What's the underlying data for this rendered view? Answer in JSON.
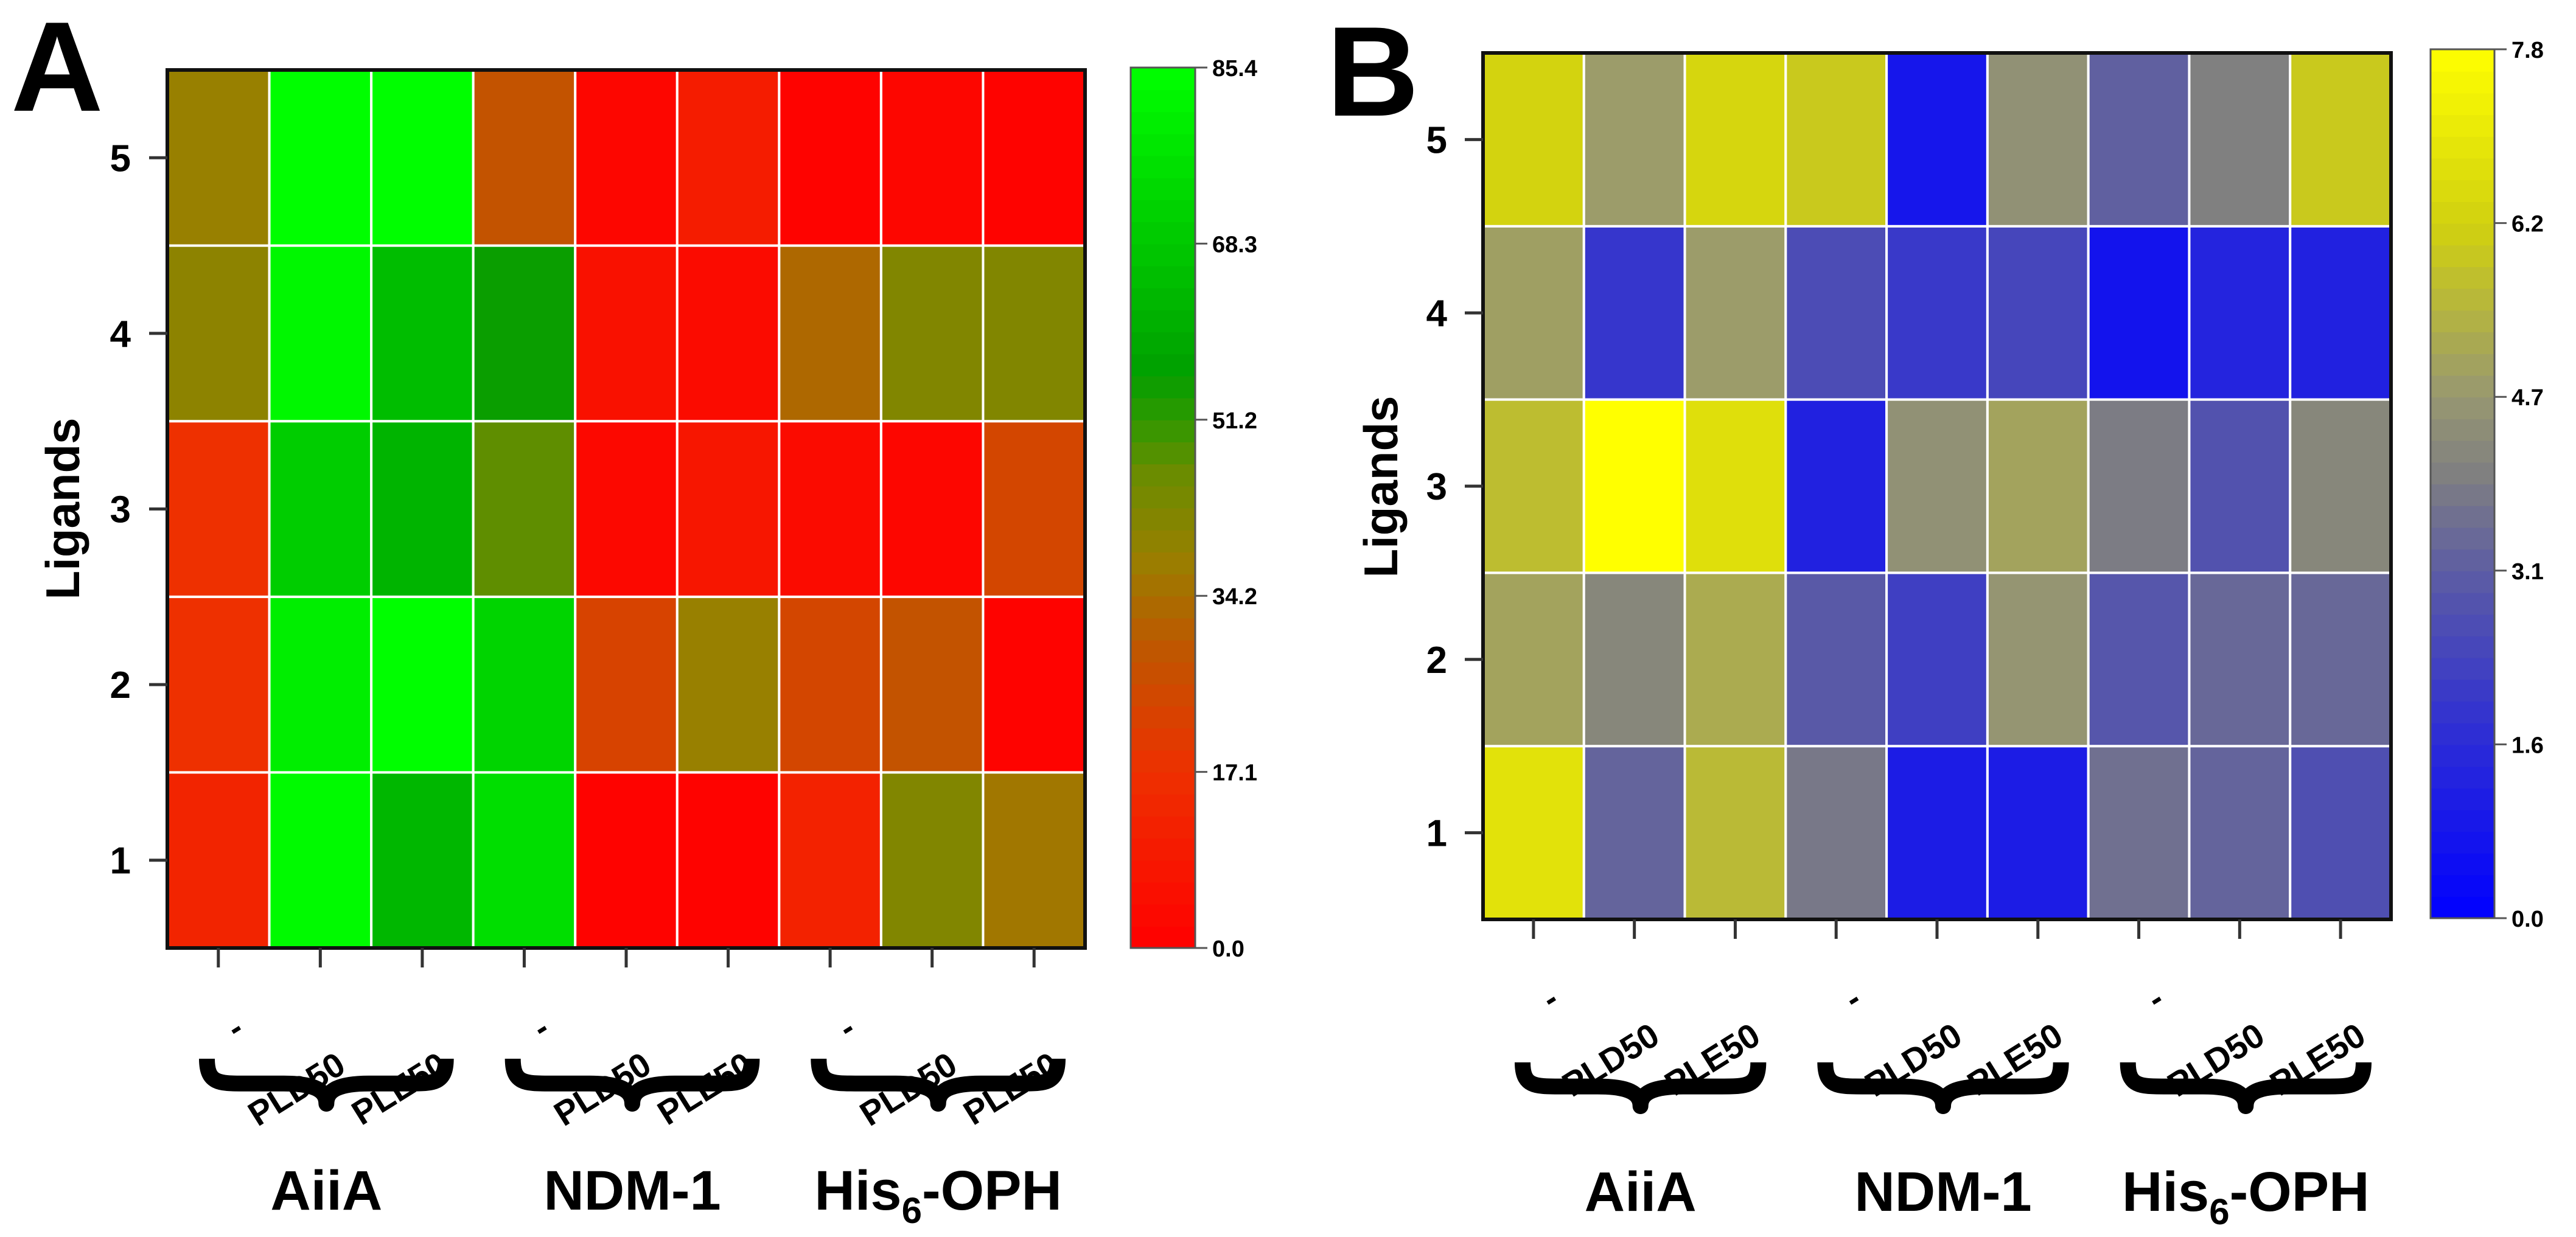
{
  "chart_data": [
    {
      "type": "heatmap",
      "panel_label": "A",
      "ylabel": "Ligands",
      "y_categories": [
        "1",
        "2",
        "3",
        "4",
        "5"
      ],
      "x_categories": [
        "-",
        "PLD50",
        "PLE50",
        "-",
        "PLD50",
        "PLE50",
        "-",
        "PLD50",
        "PLE50"
      ],
      "groups": [
        {
          "label": "AiiA",
          "sub": "",
          "rest": ""
        },
        {
          "label": "NDM-1",
          "sub": "",
          "rest": ""
        },
        {
          "label": "His",
          "sub": "6",
          "rest": "-OPH"
        }
      ],
      "values": [
        [
          13,
          84,
          63,
          75,
          1,
          1,
          12,
          42,
          36
        ],
        [
          17,
          80,
          85,
          72,
          23,
          38,
          24,
          28,
          1
        ],
        [
          17,
          70,
          62,
          47,
          3,
          8,
          4,
          2,
          24
        ],
        [
          40,
          83,
          65,
          55,
          6,
          4,
          33,
          42,
          42
        ],
        [
          38,
          85,
          85,
          28,
          2,
          10,
          1,
          2,
          1
        ]
      ],
      "colorbar": {
        "range": [
          0,
          85.4
        ],
        "ticks": [
          "0.0",
          "17.1",
          "34.2",
          "51.2",
          "68.3",
          "85.4"
        ],
        "stops": [
          {
            "v": 0,
            "c": "#ff0000"
          },
          {
            "v": 17.1,
            "c": "#ee3000"
          },
          {
            "v": 30,
            "c": "#bb5a00"
          },
          {
            "v": 38,
            "c": "#988000"
          },
          {
            "v": 46,
            "c": "#6a8c00"
          },
          {
            "v": 51.2,
            "c": "#309800"
          },
          {
            "v": 56,
            "c": "#00a000"
          },
          {
            "v": 68.3,
            "c": "#00c800"
          },
          {
            "v": 85.4,
            "c": "#00ff00"
          }
        ]
      }
    },
    {
      "type": "heatmap",
      "panel_label": "B",
      "ylabel": "Ligands",
      "y_categories": [
        "1",
        "2",
        "3",
        "4",
        "5"
      ],
      "x_categories": [
        "-",
        "PLD50",
        "PLE50",
        "-",
        "PLD50",
        "PLE50",
        "-",
        "PLD50",
        "PLE50"
      ],
      "groups": [
        {
          "label": "AiiA",
          "sub": "",
          "rest": ""
        },
        {
          "label": "NDM-1",
          "sub": "",
          "rest": ""
        },
        {
          "label": "His",
          "sub": "6",
          "rest": "-OPH"
        }
      ],
      "values": [
        [
          6.8,
          3.3,
          5.6,
          3.8,
          1.0,
          1.0,
          3.6,
          3.3,
          2.7
        ],
        [
          5.0,
          4.2,
          5.2,
          3.0,
          2.2,
          4.6,
          2.9,
          3.4,
          3.4
        ],
        [
          5.7,
          7.8,
          6.7,
          1.2,
          4.5,
          5.0,
          3.9,
          2.8,
          4.2
        ],
        [
          4.9,
          1.9,
          4.8,
          2.6,
          2.0,
          2.4,
          0.7,
          1.3,
          1.2
        ],
        [
          6.3,
          4.8,
          6.4,
          6.0,
          0.8,
          4.5,
          3.2,
          4.0,
          6.0
        ]
      ],
      "colorbar": {
        "range": [
          0,
          7.8
        ],
        "ticks": [
          "0.0",
          "1.6",
          "3.1",
          "4.7",
          "6.2",
          "7.8"
        ],
        "stops": [
          {
            "v": 0,
            "c": "#0000ff"
          },
          {
            "v": 1.6,
            "c": "#2c2cd6"
          },
          {
            "v": 3.1,
            "c": "#5c5ca4"
          },
          {
            "v": 4.0,
            "c": "#808080"
          },
          {
            "v": 4.7,
            "c": "#989870"
          },
          {
            "v": 6.2,
            "c": "#d0d010"
          },
          {
            "v": 7.8,
            "c": "#ffff00"
          }
        ]
      }
    }
  ]
}
